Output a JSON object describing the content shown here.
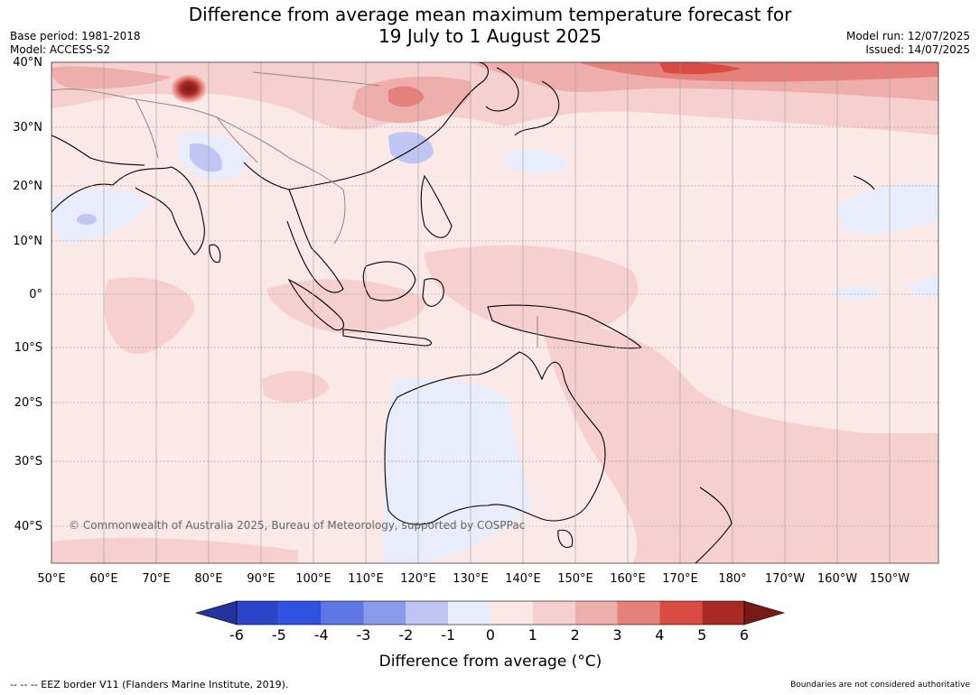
{
  "title_line1": "Difference from average mean maximum temperature forecast for",
  "title_line2": "19 July to 1 August 2025",
  "base_period": "Base period: 1981-2018",
  "model": "Model: ACCESS-S2",
  "model_run": "Model run: 12/07/2025",
  "issued": "Issued: 14/07/2025",
  "copyright": "© Commonwealth of Australia 2025, Bureau of Meteorology, supported by COSPPac",
  "footer_left": "--  --  -- EEZ border V11 (Flanders Marine Institute, 2019).",
  "footer_right": "Boundaries are not considered authoritative",
  "lat_labels": [
    {
      "text": "40°N",
      "lat": 40
    },
    {
      "text": "30°N",
      "lat": 30
    },
    {
      "text": "20°N",
      "lat": 20
    },
    {
      "text": "10°N",
      "lat": 10
    },
    {
      "text": "0°",
      "lat": 0
    },
    {
      "text": "10°S",
      "lat": -10
    },
    {
      "text": "20°S",
      "lat": -20
    },
    {
      "text": "30°S",
      "lat": -30
    },
    {
      "text": "40°S",
      "lat": -40
    }
  ],
  "lon_labels": [
    {
      "text": "50°E",
      "lon": 50
    },
    {
      "text": "60°E",
      "lon": 60
    },
    {
      "text": "70°E",
      "lon": 70
    },
    {
      "text": "80°E",
      "lon": 80
    },
    {
      "text": "90°E",
      "lon": 90
    },
    {
      "text": "100°E",
      "lon": 100
    },
    {
      "text": "110°E",
      "lon": 110
    },
    {
      "text": "120°E",
      "lon": 120
    },
    {
      "text": "130°E",
      "lon": 130
    },
    {
      "text": "140°E",
      "lon": 140
    },
    {
      "text": "150°E",
      "lon": 150
    },
    {
      "text": "160°E",
      "lon": 160
    },
    {
      "text": "170°E",
      "lon": 170
    },
    {
      "text": "180°",
      "lon": 180
    },
    {
      "text": "170°W",
      "lon": 190
    },
    {
      "text": "160°W",
      "lon": 200
    },
    {
      "text": "150°W",
      "lon": 210
    }
  ],
  "colorbar": {
    "title": "Difference from average (°C)",
    "ticks": [
      "-6",
      "-5",
      "-4",
      "-3",
      "-2",
      "-1",
      "0",
      "1",
      "2",
      "3",
      "4",
      "5",
      "6"
    ],
    "colors": [
      "#24339e",
      "#2b45c9",
      "#3050e0",
      "#5f76e5",
      "#8b9bec",
      "#bfc6f4",
      "#e9ecfb",
      "#fbe7e6",
      "#f5d0ce",
      "#eeaeab",
      "#e6807b",
      "#d94b42",
      "#a92a24",
      "#781a16"
    ]
  },
  "palette": {
    "ocean_base": "#fbe9e8",
    "anomaly_0_1": "#fbe7e6",
    "anomaly_1_2": "#f5d0ce",
    "anomaly_2_3": "#eeaeab",
    "anomaly_3_4": "#e6807b",
    "anomaly_4_5": "#d94b42",
    "anomaly_5_6": "#a92a24",
    "anomaly_m1_0": "#e9ecfb",
    "anomaly_m2_m1": "#bfc6f4",
    "coast": "#000000",
    "border": "#888888",
    "grid": "#999999"
  }
}
